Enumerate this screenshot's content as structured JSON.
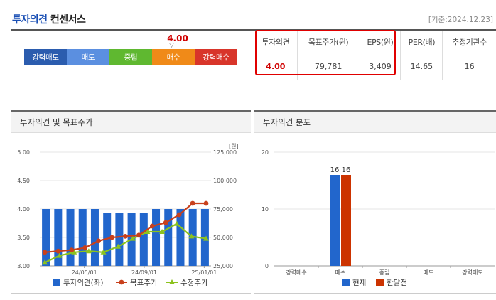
{
  "header": {
    "title_accent": "투자의견",
    "title_rest": "컨센서스",
    "as_of": "[기준:2024.12.23]"
  },
  "opinion": {
    "score": "4.00",
    "score_value": 4.0,
    "marker": "▽",
    "segments": [
      {
        "label": "강력매도",
        "color": "#2b5cae"
      },
      {
        "label": "매도",
        "color": "#5b8fe0"
      },
      {
        "label": "중립",
        "color": "#5fb830"
      },
      {
        "label": "매수",
        "color": "#f08a18"
      },
      {
        "label": "강력매수",
        "color": "#d8352a"
      }
    ]
  },
  "summary_table": {
    "headers": [
      "투자의견",
      "목표주가(원)",
      "EPS(원)",
      "PER(배)",
      "추정기관수"
    ],
    "values": [
      "4.00",
      "79,781",
      "3,409",
      "14.65",
      "16"
    ]
  },
  "left_panel": {
    "title": "투자의견 및 목표주가",
    "unit": "[원]"
  },
  "right_panel": {
    "title": "투자의견 분포"
  },
  "chart_data": [
    {
      "type": "bar",
      "title": "투자의견 및 목표주가",
      "left_axis": {
        "ticks": [
          "5.00",
          "4.50",
          "4.00",
          "3.50",
          "3.00"
        ],
        "range": [
          3.0,
          5.0
        ]
      },
      "right_axis": {
        "ticks": [
          "125,000",
          "100,000",
          "75,000",
          "50,000",
          "25,000"
        ],
        "range": [
          25000,
          125000
        ],
        "unit": "[원]"
      },
      "x_ticks": [
        "24/05/01",
        "24/09/01",
        "25/01/01"
      ],
      "series": [
        {
          "name": "투자의견(좌)",
          "kind": "bar",
          "color": "#2266cc",
          "values": [
            4.0,
            4.0,
            4.0,
            4.0,
            4.0,
            3.93,
            3.93,
            3.93,
            3.93,
            4.0,
            4.0,
            4.0,
            4.0,
            4.0
          ]
        },
        {
          "name": "목표주가",
          "kind": "line",
          "color": "#c8401c",
          "values": [
            37000,
            38000,
            39000,
            41000,
            47000,
            50000,
            51000,
            52000,
            60000,
            63000,
            70000,
            80000,
            80000
          ]
        },
        {
          "name": "수정주가",
          "kind": "line",
          "color": "#8cc21e",
          "values": [
            28000,
            34000,
            37000,
            38000,
            37000,
            42000,
            49000,
            55000,
            55000,
            62000,
            51000,
            49000
          ]
        }
      ]
    },
    {
      "type": "bar",
      "title": "투자의견 분포",
      "categories": [
        "강력매수",
        "매수",
        "중립",
        "매도",
        "강력매도"
      ],
      "y_ticks": [
        "20",
        "10",
        "0"
      ],
      "ylim": [
        0,
        20
      ],
      "series": [
        {
          "name": "현재",
          "color": "#2266cc",
          "values": [
            0,
            16,
            0,
            0,
            0
          ],
          "labels": [
            "",
            "16",
            "",
            "",
            ""
          ]
        },
        {
          "name": "한달전",
          "color": "#cc3300",
          "values": [
            0,
            16,
            0,
            0,
            0
          ],
          "labels": [
            "",
            "16",
            "",
            "",
            ""
          ]
        }
      ]
    }
  ]
}
